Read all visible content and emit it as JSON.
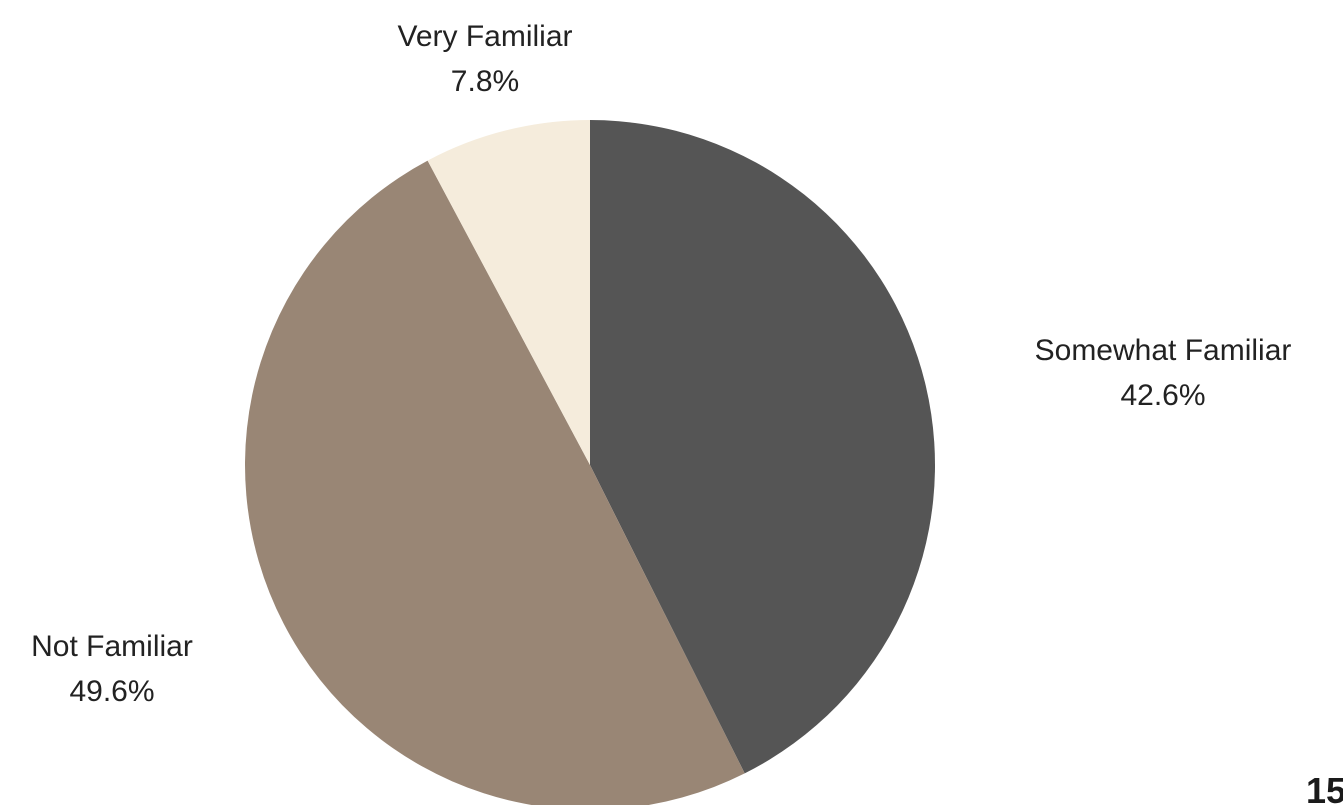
{
  "chart_data": {
    "type": "pie",
    "categories": [
      "Somewhat Familiar",
      "Not Familiar",
      "Very Familiar"
    ],
    "values": [
      42.6,
      49.6,
      7.8
    ],
    "value_labels": [
      "42.6%",
      "49.6%",
      "7.8%"
    ],
    "colors": [
      "#555555",
      "#998675",
      "#f5ecdc"
    ],
    "start_angle": "12 o'clock",
    "direction": "clockwise"
  },
  "page_number": "15"
}
